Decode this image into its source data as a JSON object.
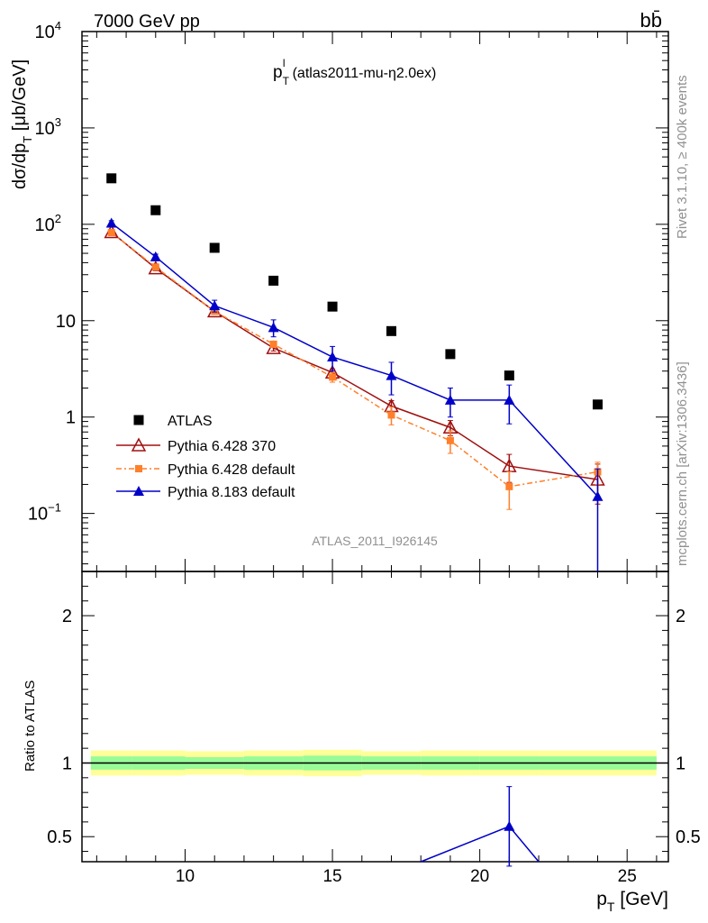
{
  "header": {
    "left": "7000 GeV pp",
    "right": "bb̄"
  },
  "side_text": {
    "rivet": "Rivet 3.1.10, ≥ 400k events",
    "mcplots": "mcplots.cern.ch [arXiv:1306.3436]"
  },
  "chart_data": [
    {
      "type": "scatter",
      "panel": "main",
      "title": "p_T^l (atlas2011-mu-η2.0ex)",
      "ylabel": "dσ/dp_T [μb/GeV]",
      "analysis_label": "ATLAS_2011_I926145",
      "xlim": [
        6.5,
        26.4
      ],
      "ylim": [
        0.025,
        10000
      ],
      "yscale": "log",
      "y_ticks": [
        "10^-1",
        "1",
        "10",
        "10^2",
        "10^3",
        "10^4"
      ],
      "legend_position": "lower-left",
      "series": [
        {
          "name": "ATLAS",
          "marker": "filled-square",
          "color": "#000000",
          "x": [
            7.5,
            9,
            11,
            13,
            15,
            17,
            19,
            21,
            24
          ],
          "y": [
            300,
            140,
            57,
            26,
            14,
            7.8,
            4.5,
            2.7,
            1.35
          ]
        },
        {
          "name": "Pythia 6.428 370",
          "marker": "open-triangle",
          "color": "#a01010",
          "x": [
            7.5,
            9,
            11,
            13,
            15,
            17,
            19,
            21,
            24
          ],
          "y": [
            83,
            35,
            12.5,
            5.2,
            2.9,
            1.3,
            0.78,
            0.31,
            0.225
          ],
          "err": [
            5,
            2,
            0.6,
            0.35,
            0.25,
            0.18,
            0.14,
            0.1,
            0.1
          ]
        },
        {
          "name": "Pythia 6.428 default",
          "marker": "filled-square-small",
          "line": "dash-dot",
          "color": "#ff7f2a",
          "x": [
            7.5,
            9,
            11,
            13,
            15,
            17,
            19,
            21,
            24
          ],
          "y": [
            82,
            36,
            12.5,
            5.7,
            2.6,
            1.05,
            0.57,
            0.19,
            0.27
          ],
          "err": [
            5,
            2,
            0.6,
            0.4,
            0.3,
            0.22,
            0.15,
            0.08,
            0.07
          ]
        },
        {
          "name": "Pythia 8.183 default",
          "marker": "filled-triangle",
          "color": "#0000c8",
          "x": [
            7.5,
            9,
            11,
            13,
            15,
            17,
            19,
            21,
            24
          ],
          "y": [
            103,
            46,
            14.3,
            8.5,
            4.2,
            2.7,
            1.5,
            1.5,
            0.15
          ],
          "err": [
            6,
            3,
            2,
            1.7,
            1.2,
            1.0,
            0.5,
            0.65,
            0.14
          ]
        }
      ]
    },
    {
      "type": "line",
      "panel": "ratio",
      "ylabel": "Ratio to ATLAS",
      "xlabel": "p_T [GeV]",
      "xlim": [
        6.5,
        26.4
      ],
      "ylim": [
        0.33,
        2.3
      ],
      "x_ticks": [
        10,
        15,
        20,
        25
      ],
      "y_ticks": [
        0.5,
        1,
        2
      ],
      "reference_line": 1,
      "bands": {
        "bin_edges": [
          6.8,
          8.2,
          10,
          12,
          14,
          16,
          18,
          20,
          22,
          26
        ],
        "stat_half": [
          0.045,
          0.045,
          0.04,
          0.045,
          0.05,
          0.045,
          0.045,
          0.045,
          0.045
        ],
        "total_half": [
          0.085,
          0.085,
          0.08,
          0.085,
          0.09,
          0.08,
          0.085,
          0.085,
          0.085
        ],
        "stat_color": "#98fb98",
        "total_color": "#ffff99"
      },
      "series": [
        {
          "name": "Pythia 8.183 ratio",
          "color": "#0000c8",
          "x": [
            18,
            21,
            22
          ],
          "y": [
            0.33,
            0.57,
            0.33
          ],
          "points": [
            {
              "x": 21,
              "y": 0.57,
              "err": 0.27
            }
          ]
        }
      ]
    }
  ]
}
